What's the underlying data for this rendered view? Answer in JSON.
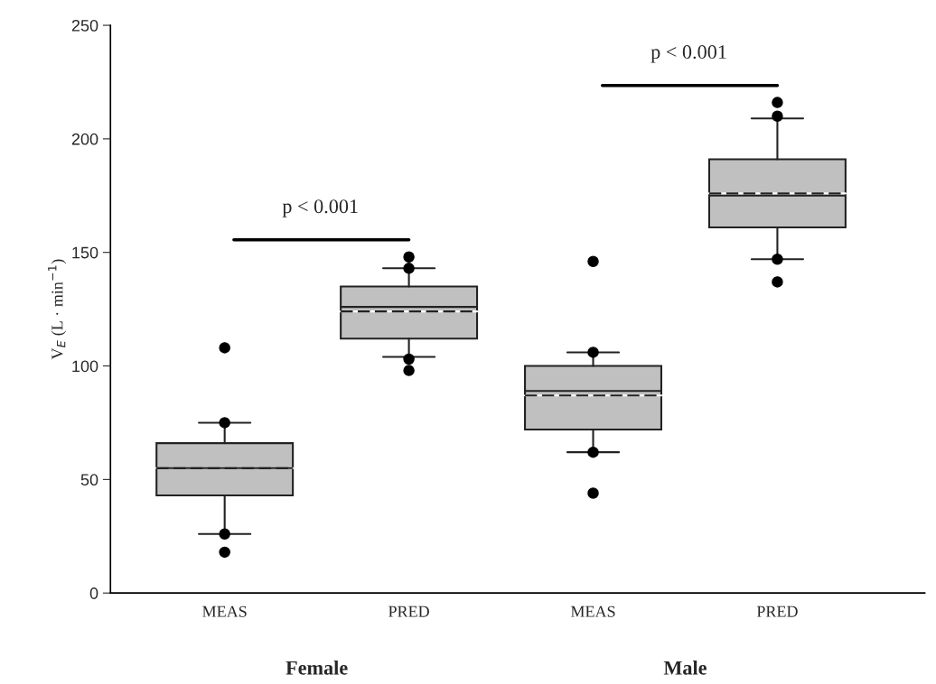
{
  "chart_data": {
    "type": "box",
    "ylabel": "V$_{E}$ (L · min$^{−1}$)",
    "categories": [
      "MEAS",
      "PRED",
      "MEAS",
      "PRED"
    ],
    "color": "#c0c0c0",
    "boxes": [
      {
        "low": 26,
        "q1": 43,
        "median": 55,
        "q3": 66,
        "high": 75,
        "mean": 55,
        "outliers": [
          108,
          75,
          26,
          18
        ]
      },
      {
        "low": 104,
        "q1": 112,
        "median": 126,
        "q3": 135,
        "high": 143,
        "mean": 124,
        "outliers": [
          148,
          143,
          103,
          98
        ]
      },
      {
        "low": 62,
        "q1": 72,
        "median": 89,
        "q3": 100,
        "high": 106,
        "mean": 87,
        "outliers": [
          146,
          106,
          62,
          44
        ]
      },
      {
        "low": 147,
        "q1": 161,
        "median": 175,
        "q3": 191,
        "high": 209,
        "mean": 176,
        "outliers": [
          216,
          210,
          147,
          137
        ]
      }
    ],
    "ylim": [
      0,
      250
    ],
    "yticks": [
      0,
      50,
      100,
      150,
      200,
      250
    ],
    "grid": false,
    "annotations": [
      "p < 0.001",
      "p < 0.001",
      "Female",
      "Male"
    ]
  }
}
